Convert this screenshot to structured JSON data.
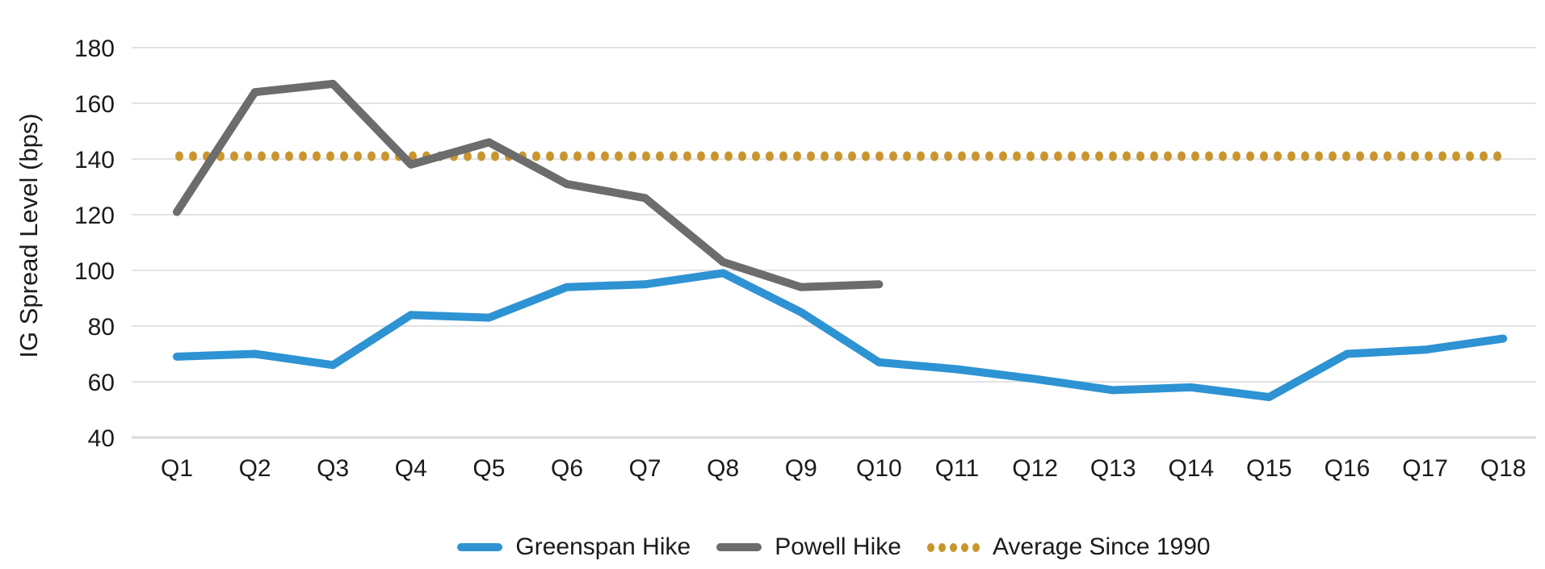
{
  "chart_data": {
    "type": "line",
    "title": "",
    "xlabel": "",
    "ylabel": "IG Spread Level (bps)",
    "ylim": [
      40,
      180
    ],
    "yticks": [
      40,
      60,
      80,
      100,
      120,
      140,
      160,
      180
    ],
    "grid": "horizontal",
    "legend_position": "bottom",
    "categories": [
      "Q1",
      "Q2",
      "Q3",
      "Q4",
      "Q5",
      "Q6",
      "Q7",
      "Q8",
      "Q9",
      "Q10",
      "Q11",
      "Q12",
      "Q13",
      "Q14",
      "Q15",
      "Q16",
      "Q17",
      "Q18"
    ],
    "series": [
      {
        "name": "Greenspan Hike",
        "style": "solid",
        "color": "#2E93D3",
        "values": [
          69,
          70,
          66,
          84,
          83,
          94,
          95,
          99,
          85,
          67,
          64.5,
          61,
          57,
          58,
          54.5,
          70,
          71.5,
          75.5
        ]
      },
      {
        "name": "Powell Hike",
        "style": "solid",
        "color": "#6C6C6C",
        "values": [
          121,
          164,
          167,
          138,
          146,
          131,
          126,
          103,
          94,
          95
        ]
      },
      {
        "name": "Average Since 1990",
        "style": "dotted",
        "color": "#C9952F",
        "value": 141
      }
    ],
    "colors": {
      "gridline": "#E3E3E3",
      "axis_line": "#D9D9D9",
      "text": "#1B1B1B"
    }
  }
}
